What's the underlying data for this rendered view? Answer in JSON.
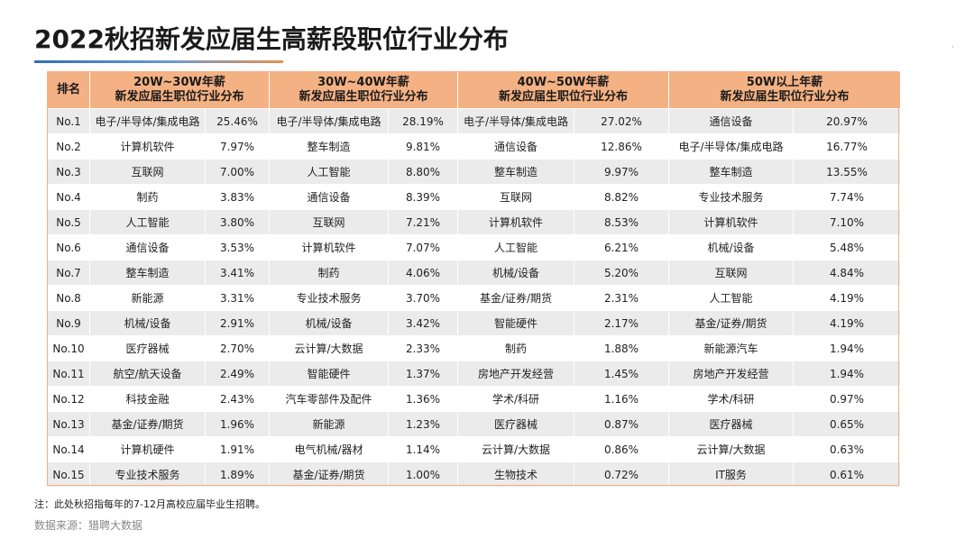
{
  "title": "2022秋招新发应届生高薪段职位行业分布",
  "header": {
    "rank": "排名",
    "groups": [
      {
        "line1": "20W~30W年薪",
        "line2": "新发应届生职位行业分布"
      },
      {
        "line1": "30W~40W年薪",
        "line2": "新发应届生职位行业分布"
      },
      {
        "line1": "40W~50W年薪",
        "line2": "新发应届生职位行业分布"
      },
      {
        "line1": "50W以上年薪",
        "line2": "新发应届生职位行业分布"
      }
    ]
  },
  "rows": [
    {
      "rank": "No.1",
      "g": [
        [
          "电子/半导体/集成电路",
          "25.46%"
        ],
        [
          "电子/半导体/集成电路",
          "28.19%"
        ],
        [
          "电子/半导体/集成电路",
          "27.02%"
        ],
        [
          "通信设备",
          "20.97%"
        ]
      ]
    },
    {
      "rank": "No.2",
      "g": [
        [
          "计算机软件",
          "7.97%"
        ],
        [
          "整车制造",
          "9.81%"
        ],
        [
          "通信设备",
          "12.86%"
        ],
        [
          "电子/半导体/集成电路",
          "16.77%"
        ]
      ]
    },
    {
      "rank": "No.3",
      "g": [
        [
          "互联网",
          "7.00%"
        ],
        [
          "人工智能",
          "8.80%"
        ],
        [
          "整车制造",
          "9.97%"
        ],
        [
          "整车制造",
          "13.55%"
        ]
      ]
    },
    {
      "rank": "No.4",
      "g": [
        [
          "制药",
          "3.83%"
        ],
        [
          "通信设备",
          "8.39%"
        ],
        [
          "互联网",
          "8.82%"
        ],
        [
          "专业技术服务",
          "7.74%"
        ]
      ]
    },
    {
      "rank": "No.5",
      "g": [
        [
          "人工智能",
          "3.80%"
        ],
        [
          "互联网",
          "7.21%"
        ],
        [
          "计算机软件",
          "8.53%"
        ],
        [
          "计算机软件",
          "7.10%"
        ]
      ]
    },
    {
      "rank": "No.6",
      "g": [
        [
          "通信设备",
          "3.53%"
        ],
        [
          "计算机软件",
          "7.07%"
        ],
        [
          "人工智能",
          "6.21%"
        ],
        [
          "机械/设备",
          "5.48%"
        ]
      ]
    },
    {
      "rank": "No.7",
      "g": [
        [
          "整车制造",
          "3.41%"
        ],
        [
          "制药",
          "4.06%"
        ],
        [
          "机械/设备",
          "5.20%"
        ],
        [
          "互联网",
          "4.84%"
        ]
      ]
    },
    {
      "rank": "No.8",
      "g": [
        [
          "新能源",
          "3.31%"
        ],
        [
          "专业技术服务",
          "3.70%"
        ],
        [
          "基金/证券/期货",
          "2.31%"
        ],
        [
          "人工智能",
          "4.19%"
        ]
      ]
    },
    {
      "rank": "No.9",
      "g": [
        [
          "机械/设备",
          "2.91%"
        ],
        [
          "机械/设备",
          "3.42%"
        ],
        [
          "智能硬件",
          "2.17%"
        ],
        [
          "基金/证券/期货",
          "4.19%"
        ]
      ]
    },
    {
      "rank": "No.10",
      "g": [
        [
          "医疗器械",
          "2.70%"
        ],
        [
          "云计算/大数据",
          "2.33%"
        ],
        [
          "制药",
          "1.88%"
        ],
        [
          "新能源汽车",
          "1.94%"
        ]
      ]
    },
    {
      "rank": "No.11",
      "g": [
        [
          "航空/航天设备",
          "2.49%"
        ],
        [
          "智能硬件",
          "1.37%"
        ],
        [
          "房地产开发经营",
          "1.45%"
        ],
        [
          "房地产开发经营",
          "1.94%"
        ]
      ]
    },
    {
      "rank": "No.12",
      "g": [
        [
          "科技金融",
          "2.43%"
        ],
        [
          "汽车零部件及配件",
          "1.36%"
        ],
        [
          "学术/科研",
          "1.16%"
        ],
        [
          "学术/科研",
          "0.97%"
        ]
      ]
    },
    {
      "rank": "No.13",
      "g": [
        [
          "基金/证券/期货",
          "1.96%"
        ],
        [
          "新能源",
          "1.23%"
        ],
        [
          "医疗器械",
          "0.87%"
        ],
        [
          "医疗器械",
          "0.65%"
        ]
      ]
    },
    {
      "rank": "No.14",
      "g": [
        [
          "计算机硬件",
          "1.91%"
        ],
        [
          "电气机械/器材",
          "1.14%"
        ],
        [
          "云计算/大数据",
          "0.86%"
        ],
        [
          "云计算/大数据",
          "0.63%"
        ]
      ]
    },
    {
      "rank": "No.15",
      "g": [
        [
          "专业技术服务",
          "1.89%"
        ],
        [
          "基金/证券/期货",
          "1.00%"
        ],
        [
          "生物技术",
          "0.72%"
        ],
        [
          "IT服务",
          "0.61%"
        ]
      ]
    }
  ],
  "note": "注：此处秋招指每年的7-12月高校应届毕业生招聘。",
  "source": "数据来源：猎聘大数据",
  "colors": {
    "header_bg": "#f4b183",
    "row_alt": "#ebebeb",
    "title_accent": "#2f6fb3"
  }
}
